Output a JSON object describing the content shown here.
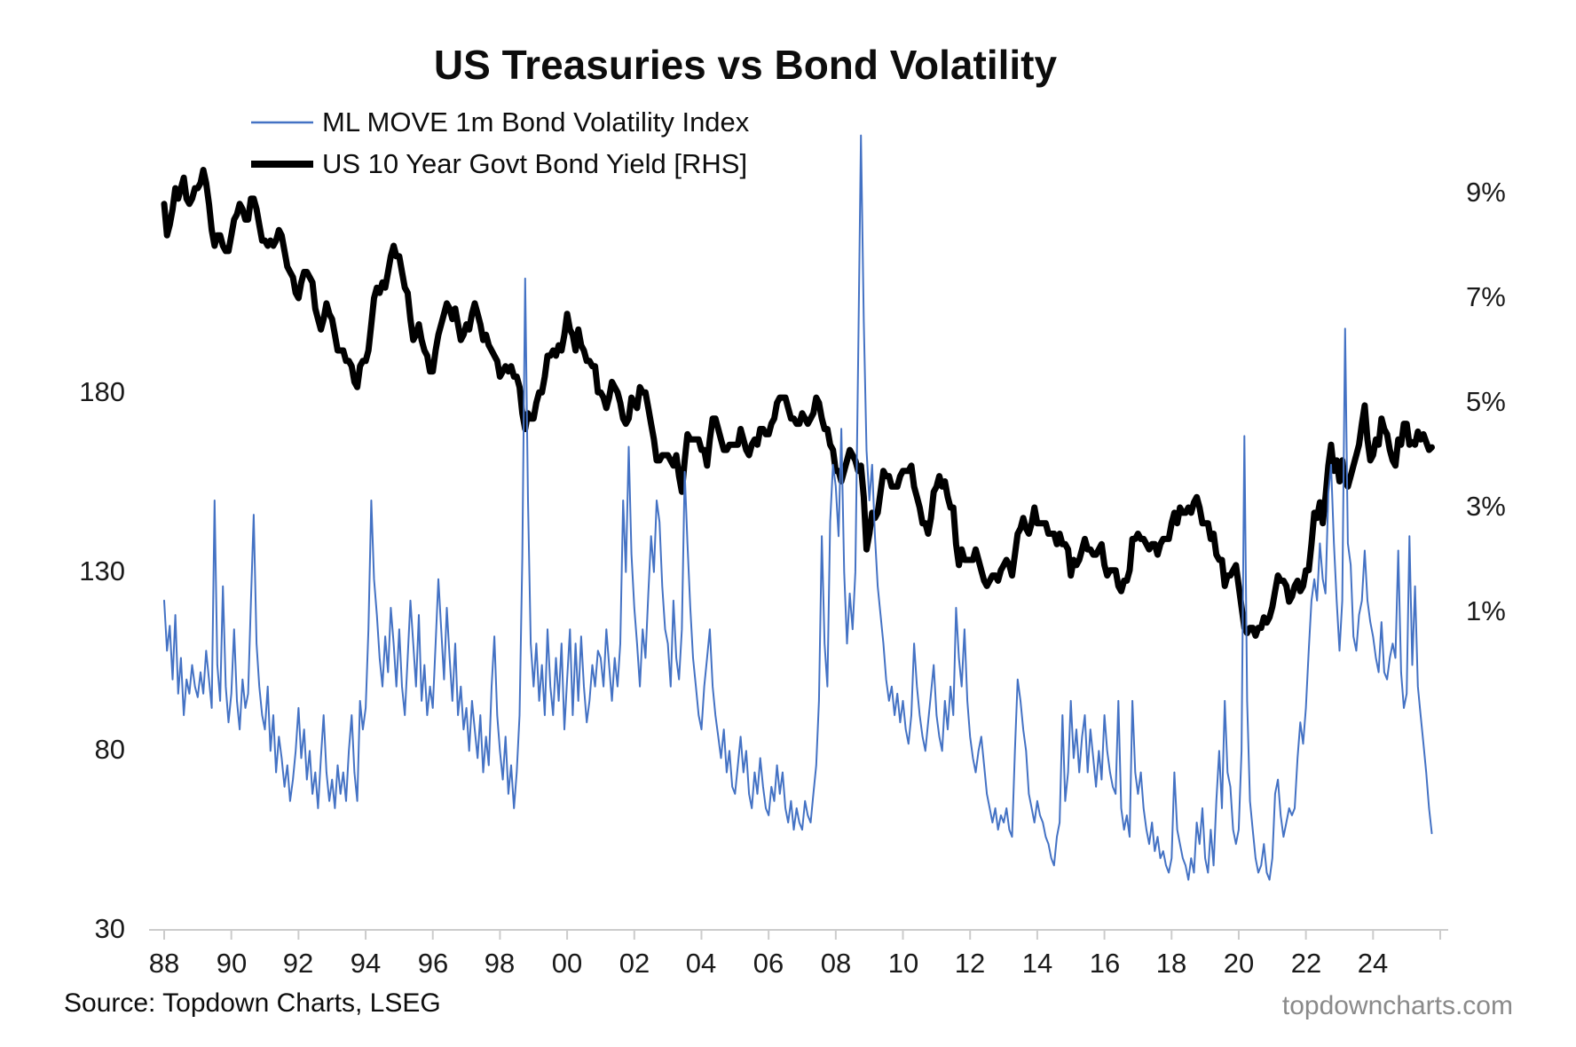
{
  "title": "US Treasuries vs Bond Volatility",
  "source_note": "Source: Topdown Charts, LSEG",
  "watermark": "topdowncharts.com",
  "colors": {
    "move_series": "#4472C4",
    "yield_series": "#000000",
    "axis_line": "#cccccc",
    "watermark_text": "#8a8a8a"
  },
  "chart_data": {
    "type": "line",
    "title": "US Treasuries vs Bond Volatility",
    "legend_position": "top-left",
    "grid": false,
    "x_axis": {
      "labels": [
        "88",
        "90",
        "92",
        "94",
        "96",
        "98",
        "00",
        "02",
        "04",
        "06",
        "08",
        "10",
        "12",
        "14",
        "16",
        "18",
        "20",
        "22",
        "24"
      ],
      "first_tick_year": 1988,
      "tick_step_years": 2,
      "extra_unlabeled_ticks": 1,
      "range_years": [
        1988,
        2026
      ]
    },
    "left_axis": {
      "tick_labels": [
        "180",
        "130",
        "80",
        "30"
      ],
      "tick_values": [
        180,
        130,
        80,
        30
      ],
      "plot_range": [
        30,
        270
      ]
    },
    "right_axis": {
      "tick_labels": [
        "9%",
        "7%",
        "5%",
        "3%",
        "1%"
      ],
      "tick_values": [
        9,
        7,
        5,
        3,
        1
      ],
      "plot_range": [
        -5.07,
        11.34
      ]
    },
    "series": [
      {
        "name": "ML MOVE 1m Bond Volatility Index",
        "axis": "left",
        "color": "#4472C4",
        "stroke_width": 2,
        "start_year": 1988.0,
        "step_years": 0.0833333,
        "values": [
          122,
          108,
          115,
          100,
          118,
          96,
          106,
          90,
          100,
          96,
          104,
          98,
          95,
          102,
          96,
          108,
          100,
          92,
          150,
          104,
          94,
          126,
          98,
          88,
          96,
          114,
          94,
          86,
          100,
          92,
          96,
          122,
          146,
          110,
          98,
          90,
          86,
          98,
          80,
          90,
          74,
          84,
          78,
          70,
          76,
          66,
          72,
          80,
          92,
          78,
          86,
          72,
          80,
          68,
          74,
          64,
          78,
          90,
          74,
          66,
          72,
          64,
          76,
          68,
          74,
          66,
          80,
          90,
          74,
          66,
          94,
          86,
          92,
          114,
          150,
          128,
          118,
          106,
          98,
          112,
          102,
          120,
          110,
          98,
          114,
          98,
          90,
          106,
          122,
          110,
          98,
          118,
          94,
          104,
          90,
          98,
          92,
          110,
          128,
          114,
          100,
          120,
          106,
          94,
          110,
          90,
          98,
          86,
          92,
          80,
          94,
          86,
          78,
          90,
          74,
          84,
          76,
          98,
          112,
          90,
          80,
          72,
          84,
          68,
          76,
          64,
          74,
          90,
          134,
          212,
          150,
          110,
          98,
          110,
          94,
          104,
          90,
          114,
          98,
          90,
          106,
          94,
          110,
          86,
          100,
          114,
          90,
          110,
          94,
          112,
          98,
          88,
          94,
          104,
          98,
          108,
          106,
          98,
          114,
          104,
          94,
          106,
          98,
          110,
          150,
          130,
          165,
          135,
          120,
          110,
          98,
          114,
          106,
          124,
          140,
          130,
          150,
          144,
          126,
          114,
          110,
          98,
          122,
          106,
          100,
          114,
          158,
          138,
          120,
          106,
          98,
          90,
          86,
          98,
          106,
          114,
          98,
          90,
          84,
          78,
          86,
          74,
          80,
          70,
          68,
          76,
          84,
          74,
          80,
          68,
          64,
          74,
          68,
          78,
          70,
          64,
          62,
          70,
          66,
          76,
          68,
          74,
          64,
          60,
          66,
          58,
          64,
          60,
          58,
          66,
          62,
          60,
          68,
          76,
          94,
          140,
          110,
          98,
          144,
          160,
          154,
          140,
          170,
          130,
          110,
          124,
          114,
          130,
          190,
          252,
          200,
          164,
          150,
          160,
          140,
          126,
          118,
          110,
          100,
          94,
          98,
          90,
          96,
          88,
          94,
          86,
          82,
          90,
          110,
          98,
          90,
          84,
          80,
          88,
          96,
          104,
          90,
          84,
          80,
          94,
          86,
          98,
          90,
          120,
          106,
          98,
          114,
          94,
          84,
          78,
          74,
          80,
          84,
          76,
          68,
          64,
          60,
          64,
          58,
          62,
          60,
          64,
          58,
          56,
          80,
          100,
          94,
          86,
          80,
          68,
          64,
          60,
          66,
          62,
          60,
          56,
          54,
          50,
          48,
          56,
          60,
          90,
          66,
          74,
          94,
          78,
          86,
          74,
          84,
          90,
          74,
          86,
          78,
          70,
          80,
          72,
          90,
          80,
          74,
          70,
          68,
          94,
          64,
          58,
          62,
          56,
          94,
          74,
          68,
          74,
          64,
          58,
          54,
          60,
          52,
          56,
          50,
          52,
          48,
          46,
          50,
          74,
          58,
          54,
          50,
          48,
          44,
          50,
          46,
          60,
          54,
          64,
          50,
          46,
          58,
          48,
          66,
          80,
          64,
          94,
          74,
          70,
          58,
          54,
          58,
          80,
          168,
          94,
          66,
          58,
          50,
          46,
          48,
          54,
          46,
          44,
          50,
          68,
          72,
          62,
          56,
          60,
          64,
          62,
          64,
          78,
          88,
          82,
          92,
          108,
          122,
          128,
          122,
          138,
          128,
          124,
          152,
          160,
          138,
          122,
          108,
          122,
          198,
          138,
          132,
          112,
          108,
          118,
          122,
          136,
          122,
          116,
          112,
          106,
          102,
          116,
          102,
          100,
          106,
          110,
          106,
          136,
          102,
          92,
          96,
          140,
          104,
          126,
          98,
          90,
          82,
          74,
          64,
          57
        ]
      },
      {
        "name": "US 10 Year Govt Bond Yield [RHS]",
        "axis": "right",
        "color": "#000000",
        "stroke_width": 7,
        "start_year": 1988.0,
        "step_years": 0.0833333,
        "values": [
          8.8,
          8.2,
          8.4,
          8.7,
          9.1,
          8.9,
          9.1,
          9.3,
          8.9,
          8.8,
          8.9,
          9.1,
          9.1,
          9.2,
          9.45,
          9.2,
          8.8,
          8.3,
          8.0,
          8.2,
          8.2,
          8.0,
          7.9,
          7.9,
          8.2,
          8.5,
          8.6,
          8.8,
          8.7,
          8.5,
          8.5,
          8.9,
          8.9,
          8.7,
          8.4,
          8.1,
          8.1,
          8.0,
          8.1,
          8.0,
          8.1,
          8.3,
          8.2,
          7.9,
          7.6,
          7.5,
          7.4,
          7.1,
          7.0,
          7.3,
          7.5,
          7.5,
          7.4,
          7.3,
          6.8,
          6.6,
          6.4,
          6.6,
          6.9,
          6.7,
          6.6,
          6.3,
          6.0,
          6.0,
          6.0,
          5.8,
          5.8,
          5.7,
          5.4,
          5.3,
          5.7,
          5.8,
          5.8,
          6.0,
          6.5,
          7.0,
          7.2,
          7.1,
          7.3,
          7.2,
          7.5,
          7.8,
          8.0,
          7.8,
          7.8,
          7.5,
          7.2,
          7.1,
          6.6,
          6.2,
          6.3,
          6.5,
          6.2,
          6.0,
          5.9,
          5.6,
          5.6,
          6.0,
          6.3,
          6.5,
          6.7,
          6.9,
          6.8,
          6.6,
          6.8,
          6.5,
          6.2,
          6.3,
          6.5,
          6.4,
          6.7,
          6.9,
          6.7,
          6.5,
          6.2,
          6.3,
          6.1,
          6.0,
          5.9,
          5.8,
          5.5,
          5.6,
          5.7,
          5.6,
          5.7,
          5.5,
          5.5,
          5.3,
          4.8,
          4.5,
          4.8,
          4.7,
          4.7,
          5.0,
          5.2,
          5.2,
          5.5,
          5.9,
          5.9,
          6.0,
          5.9,
          6.1,
          6.0,
          6.3,
          6.7,
          6.4,
          6.3,
          6.0,
          6.4,
          6.1,
          6.0,
          5.8,
          5.8,
          5.7,
          5.7,
          5.2,
          5.2,
          5.1,
          4.9,
          5.1,
          5.4,
          5.3,
          5.2,
          5.0,
          4.7,
          4.6,
          4.7,
          5.1,
          5.0,
          4.9,
          5.3,
          5.2,
          5.2,
          4.9,
          4.6,
          4.3,
          3.9,
          3.9,
          4.0,
          4.0,
          4.0,
          3.9,
          3.8,
          4.0,
          3.6,
          3.3,
          3.9,
          4.4,
          4.3,
          4.3,
          4.3,
          4.3,
          4.1,
          4.1,
          3.8,
          4.3,
          4.7,
          4.7,
          4.5,
          4.3,
          4.1,
          4.1,
          4.2,
          4.2,
          4.2,
          4.2,
          4.5,
          4.3,
          4.1,
          4.0,
          4.2,
          4.3,
          4.2,
          4.5,
          4.5,
          4.4,
          4.4,
          4.6,
          4.7,
          5.0,
          5.1,
          5.1,
          5.1,
          4.9,
          4.7,
          4.7,
          4.6,
          4.6,
          4.8,
          4.7,
          4.6,
          4.7,
          4.8,
          5.1,
          5.0,
          4.7,
          4.5,
          4.5,
          4.2,
          4.1,
          3.7,
          3.7,
          3.5,
          3.7,
          3.9,
          4.1,
          4.0,
          3.9,
          3.7,
          3.8,
          3.2,
          2.2,
          2.5,
          2.9,
          2.8,
          2.9,
          3.3,
          3.7,
          3.6,
          3.6,
          3.4,
          3.4,
          3.4,
          3.6,
          3.7,
          3.7,
          3.7,
          3.8,
          3.4,
          3.2,
          3.0,
          2.7,
          2.7,
          2.5,
          2.8,
          3.3,
          3.4,
          3.6,
          3.4,
          3.5,
          3.2,
          3.0,
          3.0,
          2.3,
          1.9,
          2.2,
          2.0,
          2.0,
          2.0,
          2.0,
          2.2,
          2.0,
          1.8,
          1.6,
          1.5,
          1.6,
          1.7,
          1.7,
          1.6,
          1.8,
          1.9,
          2.0,
          1.9,
          1.7,
          2.1,
          2.5,
          2.6,
          2.8,
          2.6,
          2.5,
          2.7,
          3.0,
          2.7,
          2.7,
          2.7,
          2.7,
          2.5,
          2.5,
          2.5,
          2.3,
          2.5,
          2.3,
          2.3,
          2.2,
          1.7,
          2.0,
          1.9,
          2.0,
          2.2,
          2.4,
          2.2,
          2.2,
          2.1,
          2.1,
          2.2,
          2.3,
          1.9,
          1.7,
          1.8,
          1.8,
          1.8,
          1.5,
          1.4,
          1.6,
          1.6,
          1.8,
          2.4,
          2.4,
          2.5,
          2.4,
          2.4,
          2.3,
          2.2,
          2.3,
          2.3,
          2.1,
          2.3,
          2.4,
          2.4,
          2.4,
          2.7,
          2.9,
          2.7,
          3.0,
          2.9,
          2.9,
          3.0,
          2.9,
          3.1,
          3.2,
          3.0,
          2.7,
          2.7,
          2.7,
          2.4,
          2.5,
          2.1,
          2.0,
          2.0,
          1.5,
          1.7,
          1.7,
          1.8,
          1.9,
          1.5,
          1.1,
          0.7,
          0.6,
          0.7,
          0.7,
          0.55,
          0.7,
          0.7,
          0.9,
          0.8,
          0.9,
          1.1,
          1.4,
          1.7,
          1.6,
          1.6,
          1.5,
          1.2,
          1.3,
          1.5,
          1.6,
          1.4,
          1.5,
          1.8,
          1.8,
          2.3,
          2.9,
          2.8,
          3.1,
          2.7,
          3.2,
          3.8,
          4.2,
          3.7,
          3.9,
          3.5,
          3.9,
          3.5,
          3.4,
          3.6,
          3.8,
          4.0,
          4.2,
          4.6,
          4.95,
          4.3,
          3.9,
          4.0,
          4.3,
          4.2,
          4.7,
          4.5,
          4.4,
          4.1,
          3.9,
          3.8,
          4.3,
          4.2,
          4.6,
          4.6,
          4.2,
          4.25,
          4.2,
          4.45,
          4.3,
          4.4,
          4.25,
          4.1,
          4.15
        ]
      }
    ]
  }
}
